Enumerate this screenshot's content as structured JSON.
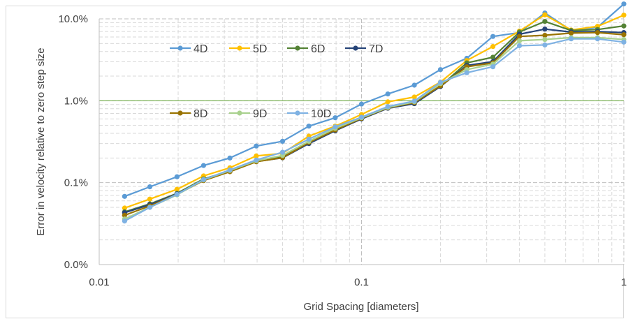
{
  "chart_data": {
    "type": "line",
    "xscale": "log",
    "yscale": "log",
    "xlim": [
      0.01,
      1
    ],
    "ylim": [
      0.0001,
      0.1
    ],
    "xlabel": "Grid Spacing [diameters]",
    "ylabel": "Error in velocity relative to zero step size",
    "xticks": [
      {
        "value": 0.01,
        "label": "0.01"
      },
      {
        "value": 0.1,
        "label": "0.1"
      },
      {
        "value": 1,
        "label": "1"
      }
    ],
    "yticks": [
      {
        "value": 0.0001,
        "label": "0.0%"
      },
      {
        "value": 0.001,
        "label": "0.1%"
      },
      {
        "value": 0.01,
        "label": "1.0%"
      },
      {
        "value": 0.1,
        "label": "10.0%"
      }
    ],
    "grid": true,
    "reference_line": {
      "y": 0.01,
      "color": "#70ad47"
    },
    "legend_position": "top-left inside plot",
    "x": [
      0.0125,
      0.0156,
      0.0198,
      0.025,
      0.0315,
      0.0397,
      0.05,
      0.063,
      0.0794,
      0.1,
      0.126,
      0.159,
      0.2,
      0.252,
      0.317,
      0.4,
      0.5,
      0.63,
      0.794,
      1.0
    ],
    "series": [
      {
        "name": "4D",
        "color": "#5b9bd5",
        "values": [
          0.00068,
          0.00089,
          0.00118,
          0.00162,
          0.002,
          0.0028,
          0.0032,
          0.0049,
          0.0062,
          0.0091,
          0.0121,
          0.0155,
          0.024,
          0.033,
          0.061,
          0.068,
          0.118,
          0.072,
          0.079,
          0.152
        ]
      },
      {
        "name": "5D",
        "color": "#ffc000",
        "values": [
          0.00049,
          0.00063,
          0.00083,
          0.00121,
          0.00152,
          0.00212,
          0.00228,
          0.0037,
          0.0049,
          0.0068,
          0.0097,
          0.0111,
          0.0169,
          0.031,
          0.046,
          0.071,
          0.112,
          0.073,
          0.081,
          0.111
        ]
      },
      {
        "name": "6D",
        "color": "#548235",
        "values": [
          0.00044,
          0.00055,
          0.00074,
          0.00111,
          0.00139,
          0.00185,
          0.00205,
          0.0031,
          0.0045,
          0.0061,
          0.0083,
          0.0093,
          0.0151,
          0.029,
          0.034,
          0.069,
          0.093,
          0.072,
          0.074,
          0.082
        ]
      },
      {
        "name": "7D",
        "color": "#264478",
        "values": [
          0.00043,
          0.00054,
          0.00073,
          0.00107,
          0.00137,
          0.00181,
          0.00201,
          0.003,
          0.0043,
          0.006,
          0.0081,
          0.0092,
          0.0149,
          0.027,
          0.03,
          0.065,
          0.075,
          0.069,
          0.07,
          0.068
        ]
      },
      {
        "name": "8D",
        "color": "#997300",
        "values": [
          0.0004,
          0.00052,
          0.00072,
          0.00106,
          0.00136,
          0.0018,
          0.00202,
          0.0031,
          0.0044,
          0.0061,
          0.0082,
          0.0095,
          0.0152,
          0.026,
          0.029,
          0.061,
          0.063,
          0.067,
          0.068,
          0.064
        ]
      },
      {
        "name": "9D",
        "color": "#a9d18e",
        "values": [
          0.00036,
          0.0005,
          0.00071,
          0.00108,
          0.00141,
          0.00185,
          0.00215,
          0.0032,
          0.0046,
          0.0062,
          0.0083,
          0.0097,
          0.0162,
          0.024,
          0.028,
          0.054,
          0.056,
          0.059,
          0.059,
          0.056
        ]
      },
      {
        "name": "10D",
        "color": "#7fb2e3",
        "values": [
          0.00034,
          0.0005,
          0.00072,
          0.00109,
          0.00143,
          0.00189,
          0.00235,
          0.0034,
          0.0048,
          0.0063,
          0.0085,
          0.0099,
          0.0168,
          0.022,
          0.026,
          0.047,
          0.048,
          0.057,
          0.057,
          0.052
        ]
      }
    ]
  }
}
